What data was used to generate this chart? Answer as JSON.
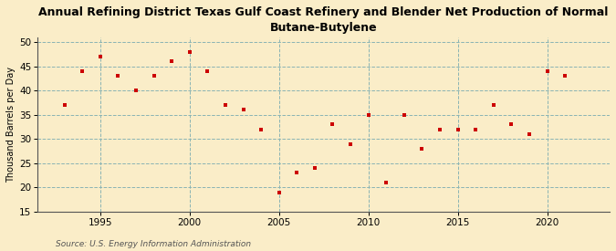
{
  "title": "Annual Refining District Texas Gulf Coast Refinery and Blender Net Production of Normal\nButane-Butylene",
  "ylabel": "Thousand Barrels per Day",
  "source": "Source: U.S. Energy Information Administration",
  "background_color": "#faedc8",
  "plot_bg_color": "#faedc8",
  "marker_color": "#cc0000",
  "grid_color": "#8ab4b4",
  "xlim": [
    1991.5,
    2023.5
  ],
  "ylim": [
    15,
    51
  ],
  "yticks": [
    15,
    20,
    25,
    30,
    35,
    40,
    45,
    50
  ],
  "xticks": [
    1995,
    2000,
    2005,
    2010,
    2015,
    2020
  ],
  "data": [
    [
      1993,
      37
    ],
    [
      1994,
      44
    ],
    [
      1995,
      47
    ],
    [
      1996,
      43
    ],
    [
      1997,
      40
    ],
    [
      1998,
      43
    ],
    [
      1999,
      46
    ],
    [
      2000,
      48
    ],
    [
      2001,
      44
    ],
    [
      2002,
      37
    ],
    [
      2003,
      36
    ],
    [
      2004,
      32
    ],
    [
      2005,
      19
    ],
    [
      2006,
      23
    ],
    [
      2007,
      24
    ],
    [
      2008,
      33
    ],
    [
      2009,
      29
    ],
    [
      2010,
      35
    ],
    [
      2011,
      21
    ],
    [
      2012,
      35
    ],
    [
      2013,
      28
    ],
    [
      2014,
      32
    ],
    [
      2015,
      32
    ],
    [
      2016,
      32
    ],
    [
      2017,
      37
    ],
    [
      2018,
      33
    ],
    [
      2019,
      31
    ],
    [
      2020,
      44
    ],
    [
      2021,
      43
    ]
  ]
}
